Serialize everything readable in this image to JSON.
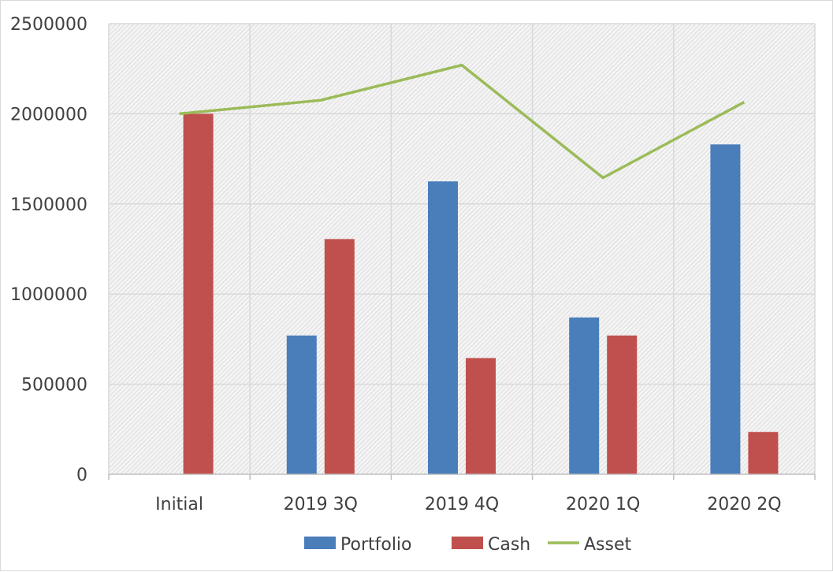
{
  "chart_data": {
    "type": "bar",
    "categories": [
      "Initial",
      "2019  3Q",
      "2019  4Q",
      "2020  1Q",
      "2020  2Q"
    ],
    "series": [
      {
        "name": "Portfolio",
        "kind": "bar",
        "color": "#4a7ebb",
        "values": [
          0,
          770000,
          1625000,
          870000,
          1830000
        ]
      },
      {
        "name": "Cash",
        "kind": "bar",
        "color": "#c0504d",
        "values": [
          2000000,
          1305000,
          645000,
          770000,
          235000
        ]
      },
      {
        "name": "Asset",
        "kind": "line",
        "color": "#9bbb59",
        "values": [
          2000000,
          2075000,
          2270000,
          1645000,
          2065000
        ]
      }
    ],
    "ylim": [
      0,
      2500000
    ],
    "yticks": [
      "0",
      "500000",
      "1000000",
      "1500000",
      "2000000",
      "2500000"
    ],
    "grid": true,
    "legend": "bottom",
    "title": "",
    "xlabel": "",
    "ylabel": ""
  }
}
